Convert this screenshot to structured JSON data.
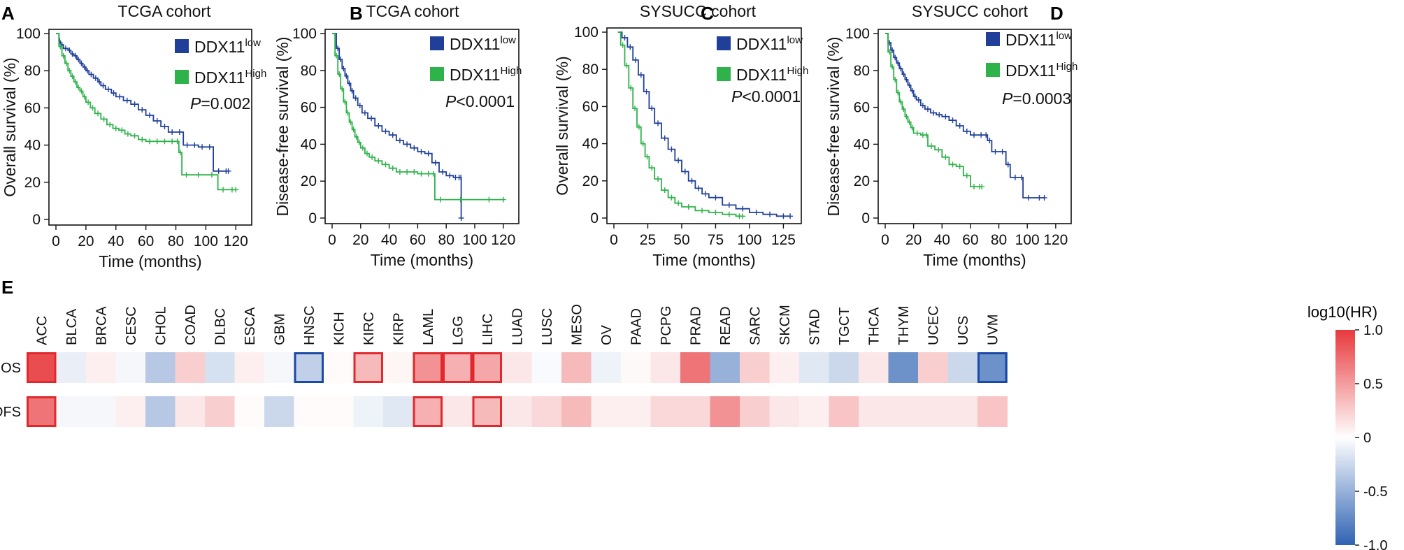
{
  "panel_letters": [
    "A",
    "B",
    "C",
    "D",
    "E"
  ],
  "colors": {
    "low": "#1f3f99",
    "high": "#2eb24a",
    "axis": "#111111",
    "pos": "#e8393d",
    "neg": "#2f63b3",
    "zero": "#ffffff",
    "box_pos": "#e0282d",
    "box_neg": "#1b49a6"
  },
  "chart_data": [
    {
      "type": "line",
      "panel": "A",
      "title": "TCGA cohort",
      "xlabel": "Time (months)",
      "ylabel": "Overall survival (%)",
      "xlim": [
        0,
        125
      ],
      "ylim": [
        0,
        100
      ],
      "xticks": [
        0,
        20,
        40,
        60,
        80,
        100,
        120
      ],
      "yticks": [
        0,
        20,
        40,
        60,
        80,
        100
      ],
      "legend": [
        {
          "base": "DDX11",
          "sup": "low"
        },
        {
          "base": "DDX11",
          "sup": "High"
        }
      ],
      "pvalue": {
        "label": "P",
        "text": "=0.002"
      },
      "series": [
        {
          "name": "DDX11 low",
          "color_key": "low",
          "x": [
            0,
            2,
            3,
            5,
            8,
            10,
            12,
            14,
            16,
            18,
            20,
            22,
            25,
            28,
            30,
            33,
            37,
            40,
            45,
            50,
            55,
            60,
            65,
            70,
            75,
            80,
            85,
            90,
            95,
            100,
            105,
            112,
            115
          ],
          "y": [
            100,
            96,
            94,
            92,
            91,
            89,
            88,
            86,
            84,
            82,
            80,
            78,
            76,
            74,
            72,
            70,
            68,
            66,
            64,
            62,
            59,
            56,
            53,
            50,
            47,
            47,
            40,
            40,
            39,
            39,
            26,
            26,
            26
          ]
        },
        {
          "name": "DDX11 High",
          "color_key": "high",
          "x": [
            0,
            2,
            4,
            6,
            8,
            10,
            12,
            14,
            16,
            18,
            20,
            23,
            26,
            30,
            34,
            38,
            42,
            46,
            50,
            55,
            60,
            65,
            70,
            75,
            80,
            82,
            84,
            90,
            100,
            108,
            115,
            120
          ],
          "y": [
            100,
            93,
            88,
            84,
            80,
            77,
            74,
            71,
            69,
            66,
            63,
            60,
            57,
            54,
            51,
            49,
            48,
            46,
            45,
            43,
            42,
            42,
            42,
            42,
            42,
            36,
            24,
            24,
            24,
            16,
            16,
            16
          ]
        }
      ]
    },
    {
      "type": "line",
      "panel": "B",
      "title": "TCGA cohort",
      "xlabel": "Time (months)",
      "ylabel": "Disease-free survival (%)",
      "xlim": [
        0,
        125
      ],
      "ylim": [
        0,
        100
      ],
      "xticks": [
        0,
        20,
        40,
        60,
        80,
        100,
        120
      ],
      "yticks": [
        0,
        20,
        40,
        60,
        80,
        100
      ],
      "legend": [
        {
          "base": "DDX11",
          "sup": "low"
        },
        {
          "base": "DDX11",
          "sup": "High"
        }
      ],
      "pvalue": {
        "label": "P",
        "text": "<0.0001"
      },
      "series": [
        {
          "name": "DDX11 low",
          "color_key": "low",
          "x": [
            0,
            3,
            5,
            7,
            9,
            11,
            13,
            15,
            18,
            21,
            25,
            30,
            35,
            40,
            45,
            50,
            55,
            60,
            65,
            70,
            75,
            80,
            85,
            88,
            90,
            90.5
          ],
          "y": [
            100,
            92,
            86,
            81,
            77,
            73,
            69,
            65,
            61,
            57,
            54,
            50,
            47,
            45,
            42,
            40,
            38,
            36,
            35,
            30,
            25,
            23,
            22,
            22,
            22,
            0
          ]
        },
        {
          "name": "DDX11 High",
          "color_key": "high",
          "x": [
            0,
            2,
            4,
            6,
            8,
            10,
            12,
            14,
            16,
            18,
            20,
            23,
            26,
            30,
            35,
            40,
            45,
            50,
            55,
            60,
            65,
            70,
            72,
            80,
            100,
            120
          ],
          "y": [
            100,
            88,
            78,
            70,
            63,
            57,
            52,
            48,
            44,
            41,
            38,
            35,
            33,
            31,
            29,
            27,
            25,
            25,
            25,
            24,
            24,
            24,
            10,
            10,
            10,
            10
          ]
        }
      ]
    },
    {
      "type": "line",
      "panel": "C",
      "title": "SYSUCC cohort",
      "xlabel": "Time (months)",
      "ylabel": "Overall survival (%)",
      "xlim": [
        0,
        132
      ],
      "ylim": [
        0,
        100
      ],
      "xticks": [
        0,
        25,
        50,
        75,
        100,
        125
      ],
      "yticks": [
        0,
        20,
        40,
        60,
        80,
        100
      ],
      "legend": [
        {
          "base": "DDX11",
          "sup": "low"
        },
        {
          "base": "DDX11",
          "sup": "High"
        }
      ],
      "pvalue": {
        "label": "P",
        "text": "<0.0001"
      },
      "series": [
        {
          "name": "DDX11 low",
          "color_key": "low",
          "x": [
            3,
            6,
            10,
            14,
            18,
            22,
            26,
            30,
            35,
            40,
            45,
            50,
            55,
            60,
            65,
            70,
            80,
            90,
            100,
            110,
            120,
            130
          ],
          "y": [
            100,
            97,
            92,
            85,
            77,
            68,
            59,
            51,
            43,
            37,
            31,
            25,
            20,
            16,
            13,
            11,
            7,
            5,
            3,
            2,
            1,
            1
          ]
        },
        {
          "name": "DDX11 High",
          "color_key": "high",
          "x": [
            3,
            5,
            8,
            11,
            14,
            17,
            20,
            23,
            26,
            30,
            35,
            40,
            45,
            50,
            60,
            70,
            80,
            90,
            95
          ],
          "y": [
            100,
            93,
            82,
            70,
            59,
            49,
            40,
            33,
            27,
            21,
            15,
            11,
            8,
            6,
            4,
            3,
            2,
            1,
            1
          ]
        }
      ]
    },
    {
      "type": "line",
      "panel": "D",
      "title": "SYSUCC cohort",
      "xlabel": "Time (months)",
      "ylabel": "Disease-free survival (%)",
      "xlim": [
        0,
        125
      ],
      "ylim": [
        0,
        100
      ],
      "xticks": [
        0,
        20,
        40,
        60,
        80,
        100,
        120
      ],
      "yticks": [
        0,
        20,
        40,
        60,
        80,
        100
      ],
      "legend": [
        {
          "base": "DDX11",
          "sup": "low"
        },
        {
          "base": "DDX11",
          "sup": "High"
        }
      ],
      "pvalue": {
        "label": "P",
        "text": "=0.0003"
      },
      "series": [
        {
          "name": "DDX11 low",
          "color_key": "low",
          "x": [
            0,
            2,
            4,
            6,
            8,
            10,
            12,
            14,
            16,
            18,
            20,
            22,
            25,
            28,
            32,
            36,
            40,
            45,
            50,
            55,
            60,
            65,
            70,
            72,
            75,
            80,
            85,
            88,
            95,
            97,
            105,
            112
          ],
          "y": [
            100,
            95,
            91,
            87,
            84,
            81,
            78,
            75,
            72,
            69,
            66,
            64,
            61,
            59,
            57,
            56,
            55,
            53,
            50,
            47,
            45,
            45,
            45,
            42,
            36,
            36,
            29,
            22,
            22,
            11,
            11,
            11
          ]
        },
        {
          "name": "DDX11 High",
          "color_key": "high",
          "x": [
            0,
            2,
            4,
            6,
            8,
            10,
            12,
            14,
            16,
            18,
            20,
            25,
            28,
            30,
            35,
            40,
            45,
            50,
            55,
            60,
            65,
            68
          ],
          "y": [
            100,
            90,
            82,
            75,
            68,
            63,
            59,
            55,
            52,
            49,
            46,
            45,
            45,
            39,
            37,
            33,
            29,
            28,
            23,
            17,
            17,
            17
          ]
        }
      ]
    },
    {
      "type": "heatmap",
      "panel": "E",
      "rows": [
        "OS",
        "DFS"
      ],
      "columns": [
        "ACC",
        "BLCA",
        "BRCA",
        "CESC",
        "CHOL",
        "COAD",
        "DLBC",
        "ESCA",
        "GBM",
        "HNSC",
        "KICH",
        "KIRC",
        "KIRP",
        "LAML",
        "LGG",
        "LIHC",
        "LUAD",
        "LUSC",
        "MESO",
        "OV",
        "PAAD",
        "PCPG",
        "PRAD",
        "READ",
        "SARC",
        "SKCM",
        "STAD",
        "TGCT",
        "THCA",
        "THYM",
        "UCEC",
        "UCS",
        "UVM"
      ],
      "values": [
        [
          0.9,
          -0.1,
          0.08,
          -0.05,
          -0.35,
          0.25,
          -0.2,
          0.08,
          -0.05,
          -0.3,
          0.02,
          0.35,
          0.05,
          0.55,
          0.4,
          0.45,
          0.12,
          -0.03,
          0.35,
          -0.08,
          0.03,
          0.12,
          0.7,
          -0.5,
          0.25,
          0.08,
          -0.15,
          -0.25,
          0.12,
          -0.7,
          0.25,
          -0.25,
          -0.7
        ],
        [
          0.7,
          -0.05,
          -0.05,
          0.08,
          -0.35,
          0.12,
          0.25,
          0.02,
          -0.25,
          0.02,
          0.02,
          -0.08,
          -0.15,
          0.4,
          0.12,
          0.35,
          0.12,
          0.2,
          0.35,
          0.08,
          0.08,
          0.2,
          0.2,
          0.55,
          0.25,
          0.12,
          0.08,
          0.3,
          0.12,
          0.12,
          0.12,
          0.12,
          0.3
        ]
      ],
      "significant": [
        {
          "row": 0,
          "col": 0,
          "sign": "pos"
        },
        {
          "row": 0,
          "col": 9,
          "sign": "neg"
        },
        {
          "row": 0,
          "col": 11,
          "sign": "pos"
        },
        {
          "row": 0,
          "col": 13,
          "sign": "pos"
        },
        {
          "row": 0,
          "col": 14,
          "sign": "pos"
        },
        {
          "row": 0,
          "col": 15,
          "sign": "pos"
        },
        {
          "row": 0,
          "col": 32,
          "sign": "neg"
        },
        {
          "row": 1,
          "col": 0,
          "sign": "pos"
        },
        {
          "row": 1,
          "col": 13,
          "sign": "pos"
        },
        {
          "row": 1,
          "col": 15,
          "sign": "pos"
        }
      ],
      "colorbar": {
        "title": "log10(HR)",
        "range": [
          -1.0,
          1.0
        ],
        "ticks": [
          1.0,
          0.5,
          0,
          -0.5,
          -1.0
        ],
        "tick_labels": [
          "1.0",
          "0.5",
          "0",
          "-0.5",
          "-1.0"
        ]
      }
    }
  ]
}
